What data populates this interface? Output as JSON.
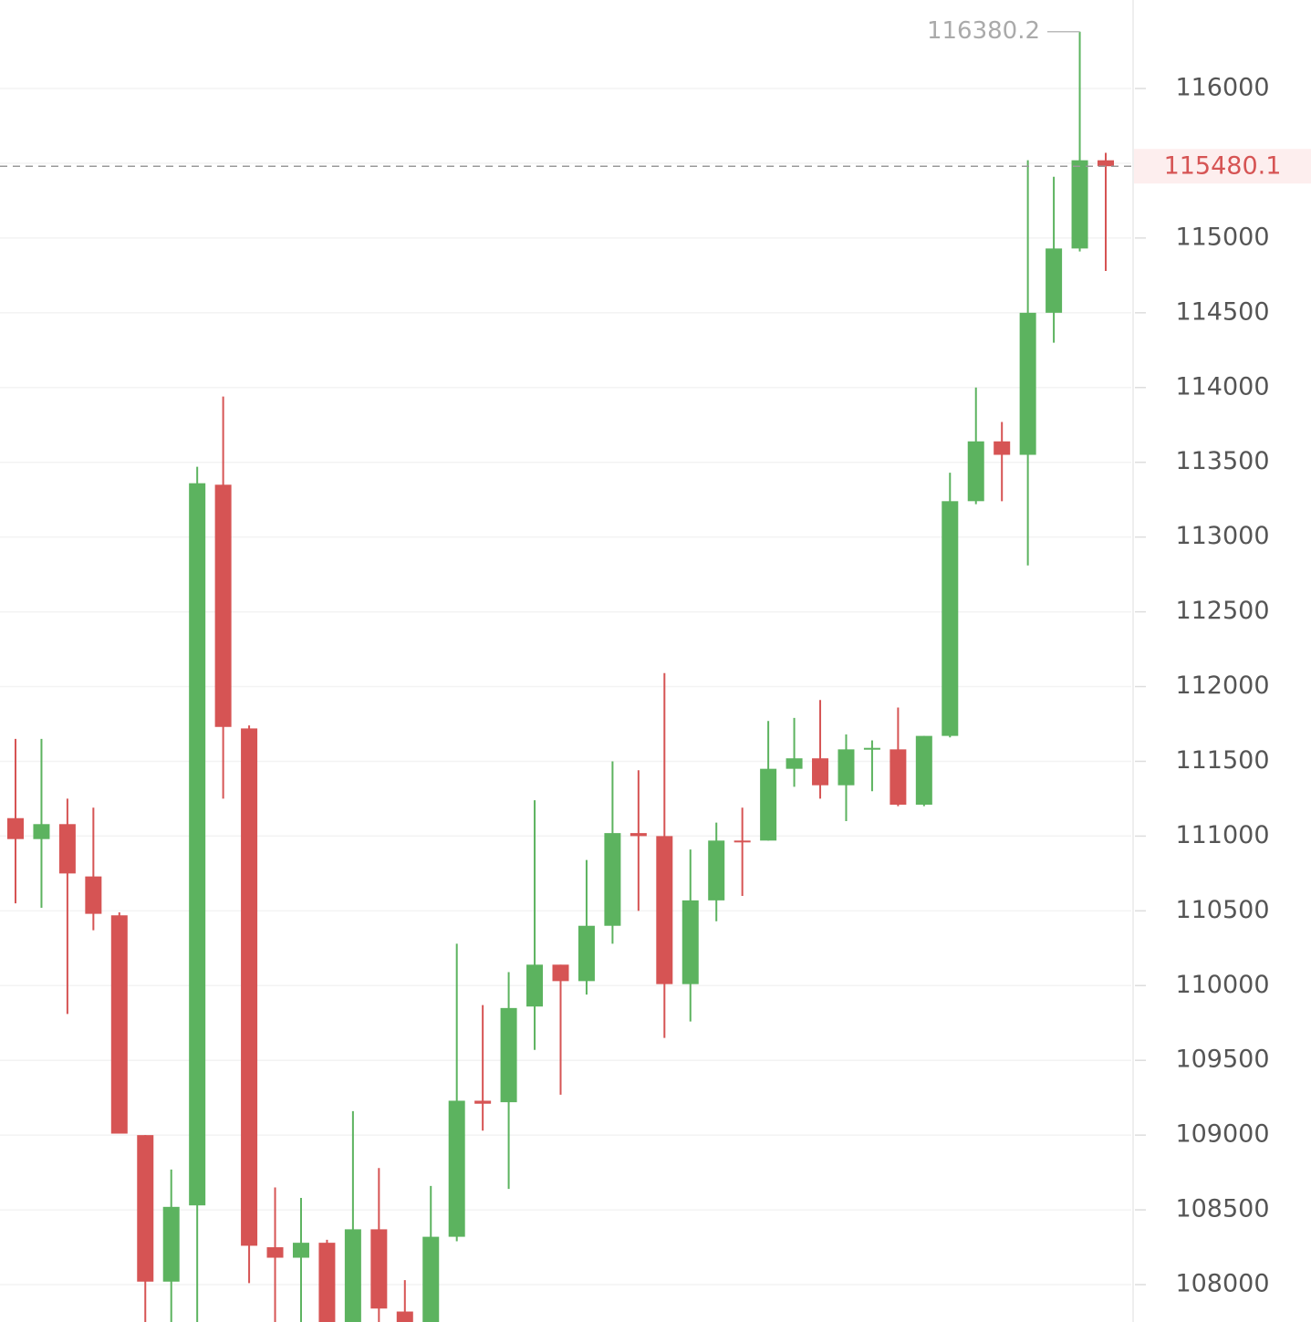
{
  "chart_data": {
    "type": "candlestick",
    "up_color": "#5cb35f",
    "down_color": "#d65454",
    "grid": true,
    "ylim": [
      107750,
      116592
    ],
    "yticks": [
      108000,
      108500,
      109000,
      109500,
      110000,
      110500,
      111000,
      111500,
      112000,
      112500,
      113000,
      113500,
      114000,
      114500,
      115000,
      115500,
      116000
    ],
    "last_price": 115480.1,
    "high_label": 116380.2,
    "open": [
      111120,
      110980,
      111080,
      110730,
      110470,
      109000,
      108020,
      108530,
      113350,
      111720,
      108250,
      108180,
      108280,
      107700,
      108370,
      107820,
      107700,
      108320,
      109230,
      109220,
      109860,
      110140,
      110030,
      110400,
      111020,
      111000,
      110010,
      110570,
      110970,
      110970,
      111450,
      111520,
      111340,
      111580,
      111580,
      111210,
      111670,
      113240,
      113640,
      113550,
      114500,
      114930,
      115520
    ],
    "high": [
      111650,
      111650,
      111250,
      111190,
      110490,
      109000,
      108770,
      113470,
      113940,
      111740,
      108650,
      108580,
      108300,
      109160,
      108780,
      108030,
      108660,
      110280,
      109870,
      110090,
      111240,
      110140,
      110840,
      111500,
      111440,
      112090,
      110910,
      111090,
      111190,
      111770,
      111790,
      111910,
      111680,
      111640,
      111860,
      111670,
      113430,
      114000,
      113770,
      115520,
      115410,
      116380.2,
      115570
    ],
    "low": [
      110550,
      110520,
      109810,
      110370,
      109010,
      107700,
      107700,
      107700,
      111250,
      108010,
      107700,
      107700,
      107700,
      107700,
      107700,
      107700,
      107700,
      108290,
      109030,
      108640,
      109570,
      109270,
      109940,
      110280,
      110500,
      109650,
      109760,
      110430,
      110600,
      110970,
      111330,
      111250,
      111100,
      111300,
      111200,
      111200,
      111660,
      113220,
      113240,
      112810,
      114300,
      114910,
      114780
    ],
    "close": [
      110980,
      111080,
      110750,
      110480,
      109010,
      108020,
      108520,
      113360,
      111730,
      108260,
      108180,
      108280,
      107700,
      108370,
      107840,
      107700,
      108320,
      109230,
      109210,
      109850,
      110140,
      110030,
      110400,
      111020,
      111000,
      110010,
      110570,
      110970,
      110960,
      111450,
      111520,
      111340,
      111580,
      111590,
      111210,
      111670,
      113240,
      113640,
      113550,
      114500,
      114930,
      115520,
      115480.1
    ]
  }
}
